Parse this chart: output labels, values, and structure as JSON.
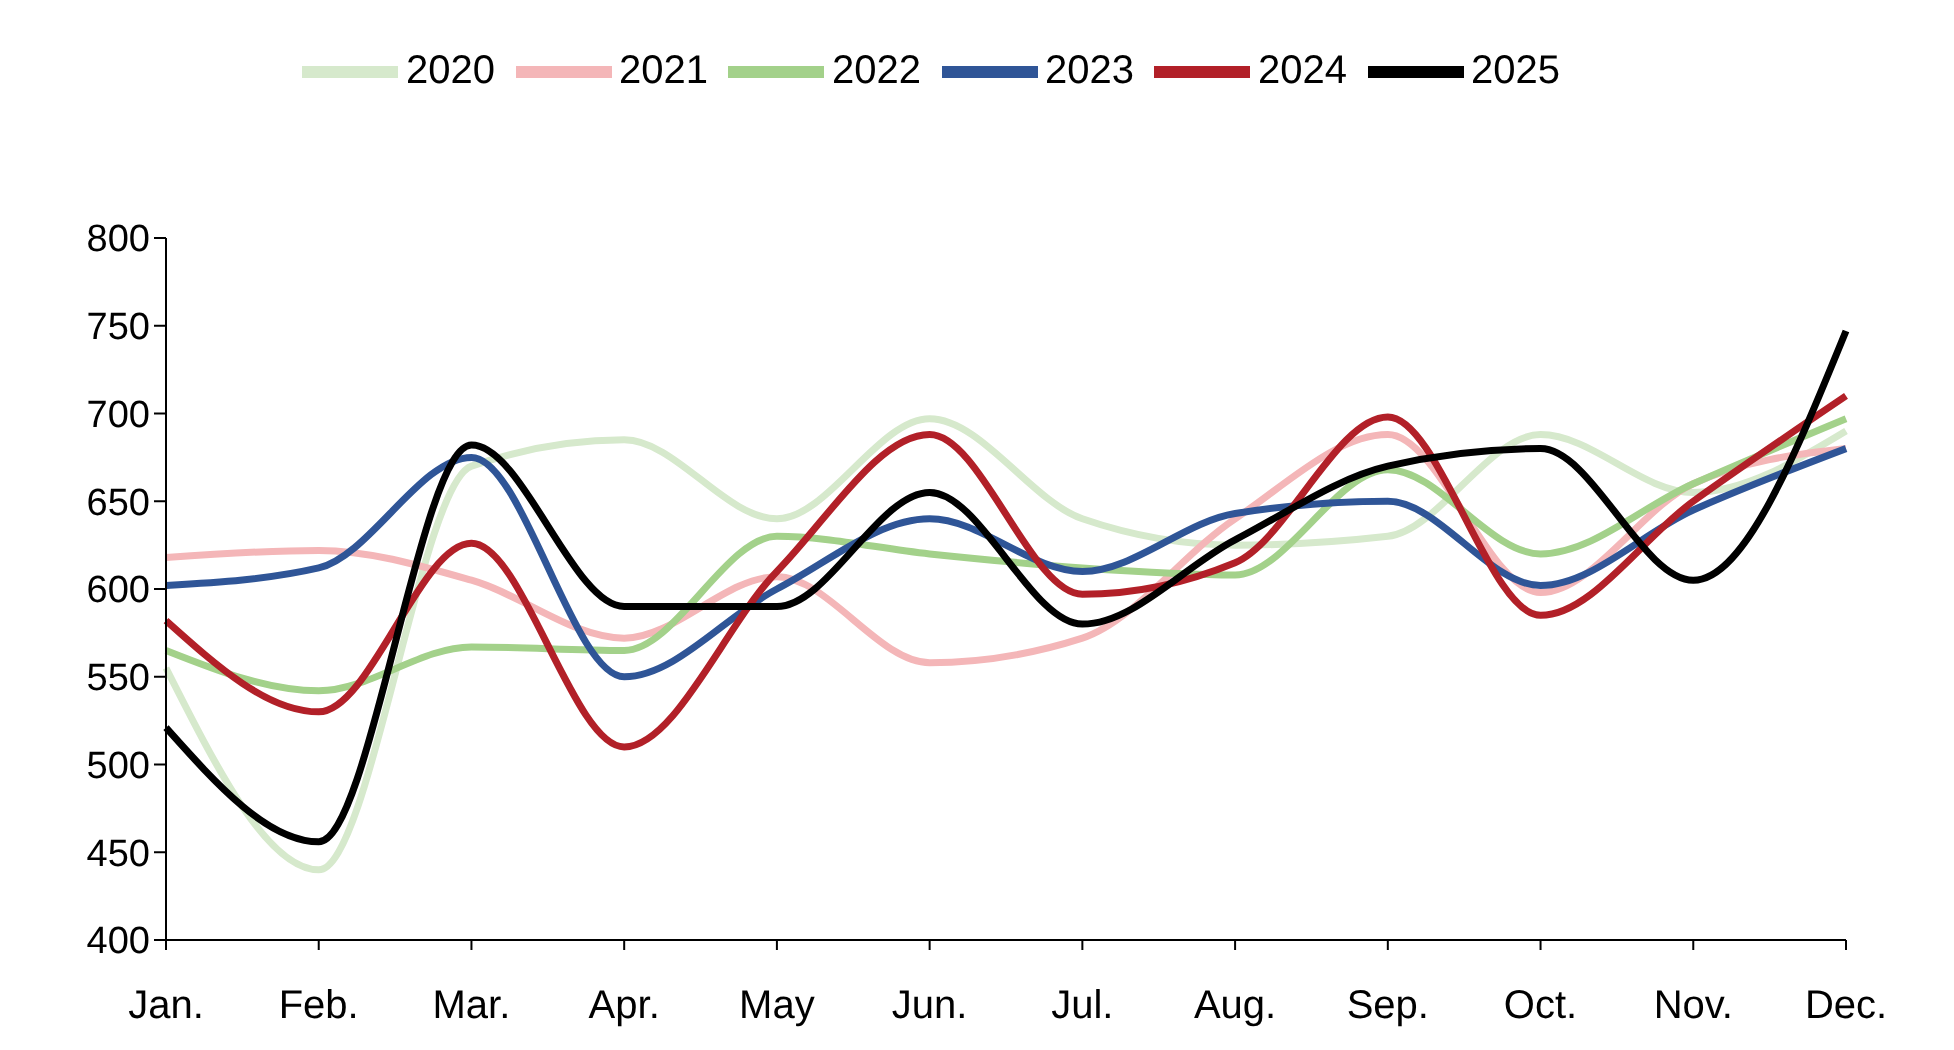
{
  "chart_data": {
    "type": "line",
    "categories": [
      "Jan.",
      "Feb.",
      "Mar.",
      "Apr.",
      "May",
      "Jun.",
      "Jul.",
      "Aug.",
      "Sep.",
      "Oct.",
      "Nov.",
      "Dec."
    ],
    "series": [
      {
        "name": "2020",
        "color": "#d6e9cc",
        "values": [
          555,
          440,
          670,
          685,
          640,
          697,
          640,
          625,
          630,
          688,
          655,
          690
        ]
      },
      {
        "name": "2021",
        "color": "#f4b6b8",
        "values": [
          618,
          622,
          605,
          572,
          607,
          558,
          572,
          640,
          688,
          598,
          660,
          680
        ]
      },
      {
        "name": "2022",
        "color": "#a3d18a",
        "values": [
          565,
          542,
          567,
          565,
          630,
          620,
          612,
          608,
          668,
          620,
          660,
          697
        ]
      },
      {
        "name": "2023",
        "color": "#2f5597",
        "values": [
          602,
          612,
          675,
          550,
          600,
          640,
          610,
          643,
          650,
          602,
          645,
          680
        ]
      },
      {
        "name": "2024",
        "color": "#b22028",
        "values": [
          582,
          530,
          626,
          510,
          610,
          688,
          597,
          615,
          698,
          585,
          650,
          710
        ]
      },
      {
        "name": "2025",
        "color": "#000000",
        "values": [
          521,
          456,
          682,
          590,
          590,
          655,
          580,
          628,
          670,
          680,
          605,
          747
        ]
      }
    ],
    "ylim": [
      400,
      800
    ],
    "yticks": [
      400,
      450,
      500,
      550,
      600,
      650,
      700,
      750,
      800
    ],
    "grid": false,
    "legend": "top",
    "marker": "none",
    "line_style": "solid"
  }
}
